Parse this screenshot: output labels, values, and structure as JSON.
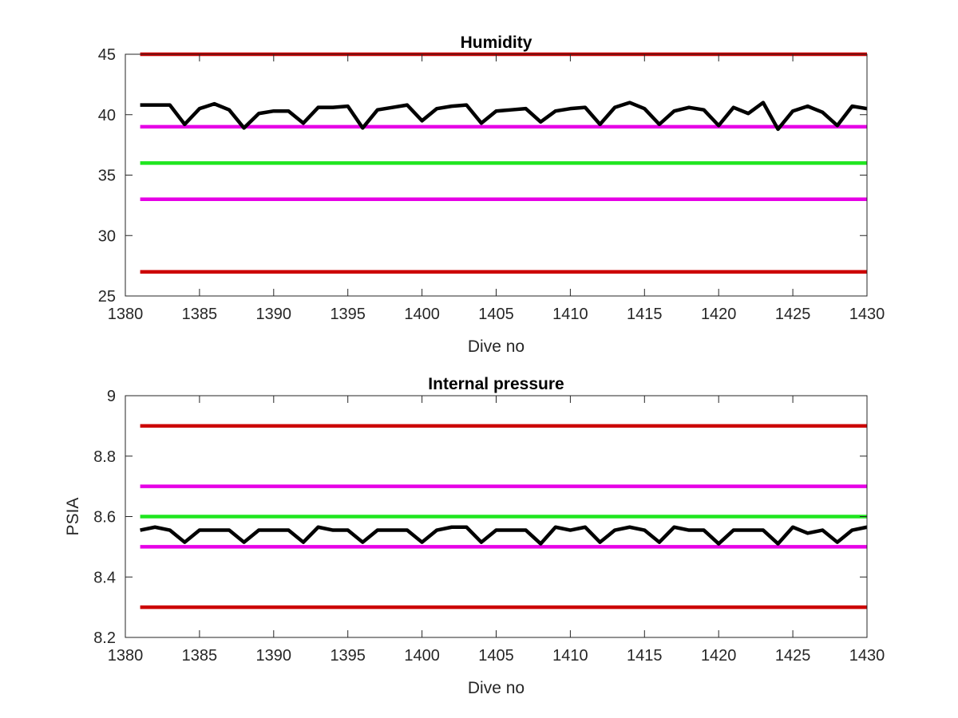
{
  "chart_data": [
    {
      "type": "line",
      "title": "Humidity",
      "xlabel": "Dive no",
      "ylabel": "",
      "xlim": [
        1380,
        1430
      ],
      "ylim": [
        25,
        45
      ],
      "xticks": [
        1380,
        1385,
        1390,
        1395,
        1400,
        1405,
        1410,
        1415,
        1420,
        1425,
        1430
      ],
      "yticks": [
        25,
        30,
        35,
        40,
        45
      ],
      "grid": false,
      "threshold_lines": [
        {
          "value": 45,
          "color": "#cc0000"
        },
        {
          "value": 39,
          "color": "#e600e6"
        },
        {
          "value": 36,
          "color": "#1fe61f"
        },
        {
          "value": 33,
          "color": "#e600e6"
        },
        {
          "value": 27,
          "color": "#cc0000"
        }
      ],
      "series": [
        {
          "color": "#000000",
          "x": [
            1381,
            1382,
            1383,
            1384,
            1385,
            1386,
            1387,
            1388,
            1389,
            1390,
            1391,
            1392,
            1393,
            1394,
            1395,
            1396,
            1397,
            1398,
            1399,
            1400,
            1401,
            1402,
            1403,
            1404,
            1405,
            1406,
            1407,
            1408,
            1409,
            1410,
            1411,
            1412,
            1413,
            1414,
            1415,
            1416,
            1417,
            1418,
            1419,
            1420,
            1421,
            1422,
            1423,
            1424,
            1425,
            1426,
            1427,
            1428,
            1429,
            1430
          ],
          "y": [
            40.8,
            40.8,
            40.8,
            39.2,
            40.5,
            40.9,
            40.4,
            38.9,
            40.1,
            40.3,
            40.3,
            39.3,
            40.6,
            40.6,
            40.7,
            38.9,
            40.4,
            40.6,
            40.8,
            39.5,
            40.5,
            40.7,
            40.8,
            39.3,
            40.3,
            40.4,
            40.5,
            39.4,
            40.3,
            40.5,
            40.6,
            39.2,
            40.6,
            41.0,
            40.5,
            39.2,
            40.3,
            40.6,
            40.4,
            39.1,
            40.6,
            40.1,
            41.0,
            38.8,
            40.3,
            40.7,
            40.2,
            39.1,
            40.7,
            40.5
          ]
        }
      ]
    },
    {
      "type": "line",
      "title": "Internal pressure",
      "xlabel": "Dive no",
      "ylabel": "PSIA",
      "xlim": [
        1380,
        1430
      ],
      "ylim": [
        8.2,
        9.0
      ],
      "xticks": [
        1380,
        1385,
        1390,
        1395,
        1400,
        1405,
        1410,
        1415,
        1420,
        1425,
        1430
      ],
      "yticks": [
        8.2,
        8.4,
        8.6,
        8.8,
        9.0
      ],
      "ytick_labels": [
        "8.2",
        "8.4",
        "8.6",
        "8.8",
        "9"
      ],
      "grid": false,
      "threshold_lines": [
        {
          "value": 8.9,
          "color": "#cc0000"
        },
        {
          "value": 8.7,
          "color": "#e600e6"
        },
        {
          "value": 8.6,
          "color": "#1fe61f"
        },
        {
          "value": 8.5,
          "color": "#e600e6"
        },
        {
          "value": 8.3,
          "color": "#cc0000"
        }
      ],
      "series": [
        {
          "color": "#000000",
          "x": [
            1381,
            1382,
            1383,
            1384,
            1385,
            1386,
            1387,
            1388,
            1389,
            1390,
            1391,
            1392,
            1393,
            1394,
            1395,
            1396,
            1397,
            1398,
            1399,
            1400,
            1401,
            1402,
            1403,
            1404,
            1405,
            1406,
            1407,
            1408,
            1409,
            1410,
            1411,
            1412,
            1413,
            1414,
            1415,
            1416,
            1417,
            1418,
            1419,
            1420,
            1421,
            1422,
            1423,
            1424,
            1425,
            1426,
            1427,
            1428,
            1429,
            1430
          ],
          "y": [
            8.555,
            8.565,
            8.555,
            8.515,
            8.555,
            8.555,
            8.555,
            8.515,
            8.555,
            8.555,
            8.555,
            8.515,
            8.565,
            8.555,
            8.555,
            8.515,
            8.555,
            8.555,
            8.555,
            8.515,
            8.555,
            8.565,
            8.565,
            8.515,
            8.555,
            8.555,
            8.555,
            8.51,
            8.565,
            8.555,
            8.565,
            8.515,
            8.555,
            8.565,
            8.555,
            8.515,
            8.565,
            8.555,
            8.555,
            8.51,
            8.555,
            8.555,
            8.555,
            8.51,
            8.565,
            8.545,
            8.555,
            8.515,
            8.555,
            8.565
          ]
        }
      ]
    }
  ]
}
